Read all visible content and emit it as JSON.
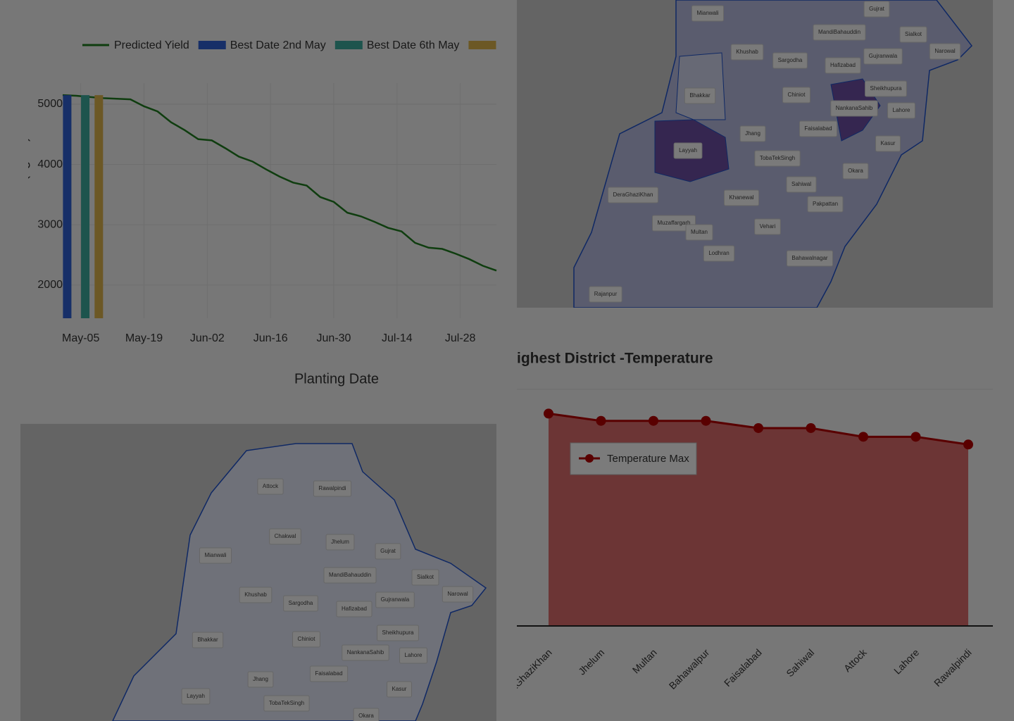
{
  "chart_data": [
    {
      "type": "line",
      "y_label": "Predicted Yield (kg/ha)",
      "x_label": "Planting Date",
      "xlim": [
        "May-01",
        "Aug-05"
      ],
      "xticks": [
        "May-05",
        "May-19",
        "Jun-02",
        "Jun-16",
        "Jun-30",
        "Jul-14",
        "Jul-28"
      ],
      "ylim": [
        1450,
        5350
      ],
      "yticks": [
        2000,
        3000,
        4000,
        5000
      ],
      "grid": true,
      "series": [
        {
          "name": "Predicted Yield",
          "type": "line",
          "color": "#1f7a1f",
          "x": [
            "May-01",
            "May-04",
            "May-07",
            "May-10",
            "May-13",
            "May-16",
            "May-19",
            "May-22",
            "May-25",
            "May-28",
            "May-31",
            "Jun-03",
            "Jun-06",
            "Jun-09",
            "Jun-12",
            "Jun-15",
            "Jun-18",
            "Jun-21",
            "Jun-24",
            "Jun-27",
            "Jun-30",
            "Jul-03",
            "Jul-06",
            "Jul-09",
            "Jul-12",
            "Jul-15",
            "Jul-18",
            "Jul-21",
            "Jul-24",
            "Jul-27",
            "Jul-30",
            "Aug-02",
            "Aug-05"
          ],
          "values": [
            5150,
            5140,
            5120,
            5100,
            5090,
            5080,
            4965,
            4880,
            4700,
            4570,
            4420,
            4400,
            4270,
            4130,
            4050,
            3920,
            3800,
            3700,
            3650,
            3460,
            3380,
            3200,
            3140,
            3050,
            2950,
            2890,
            2700,
            2620,
            2600,
            2520,
            2430,
            2320,
            2240
          ]
        },
        {
          "name": "Best Date 2nd May",
          "type": "bar",
          "color": "#2f5fd0",
          "x": [
            "May-02"
          ],
          "values": [
            5150
          ]
        },
        {
          "name": "Best Date 6th May",
          "type": "bar",
          "color": "#3aa99a",
          "x": [
            "May-06"
          ],
          "values": [
            5150
          ]
        },
        {
          "name": null,
          "type": "bar",
          "color": "#d8b04a",
          "x": [
            "May-09"
          ],
          "values": [
            5150
          ]
        }
      ]
    },
    {
      "type": "area",
      "title": "ighest District -Temperature",
      "categories": [
        "DeraGhaziKhan",
        "Jhelum",
        "Multan",
        "Bahawalpur",
        "Faisalabad",
        "Sahiwal",
        "Attock",
        "Lahore",
        "Rawalpindi"
      ],
      "ylim": [
        0,
        48
      ],
      "series": [
        {
          "name": "Temperature Max",
          "color": "#d86a6a",
          "line_color": "#b30000",
          "values": [
            44,
            42.5,
            42.5,
            42.5,
            41,
            41,
            39.2,
            39.2,
            37.6
          ]
        }
      ]
    }
  ],
  "maps": [
    {
      "labels": [
        "Mianwali",
        "Gujrat",
        "MandiBahauddin",
        "Sialkot",
        "Narowal",
        "Khushab",
        "Sargodha",
        "Gujranwala",
        "Hafizabad",
        "Bhakkar",
        "Chiniot",
        "Sheikhupura",
        "NankanaSahib",
        "Lahore",
        "Faisalabad",
        "Jhang",
        "Layyah",
        "Kasur",
        "TobaTekSingh",
        "Okara",
        "Sahiwal",
        "DeraGhaziKhan",
        "Khanewal",
        "Pakpattan",
        "Muzaffargarh",
        "Multan",
        "Vehari",
        "Lodhran",
        "Bahawalnagar",
        "Rajanpur"
      ]
    },
    {
      "labels": [
        "Attock",
        "Rawalpindi",
        "Chakwal",
        "Jhelum",
        "Gujrat",
        "Mianwali",
        "MandiBahauddin",
        "Sialkot",
        "Narowal",
        "Khushab",
        "Sargodha",
        "Gujranwala",
        "Hafizabad",
        "Bhakkar",
        "Sheikhupura",
        "Chiniot",
        "NankanaSahib",
        "Lahore",
        "Faisalabad",
        "Jhang",
        "Kasur",
        "Layyah",
        "TobaTekSingh",
        "Okara"
      ]
    }
  ]
}
